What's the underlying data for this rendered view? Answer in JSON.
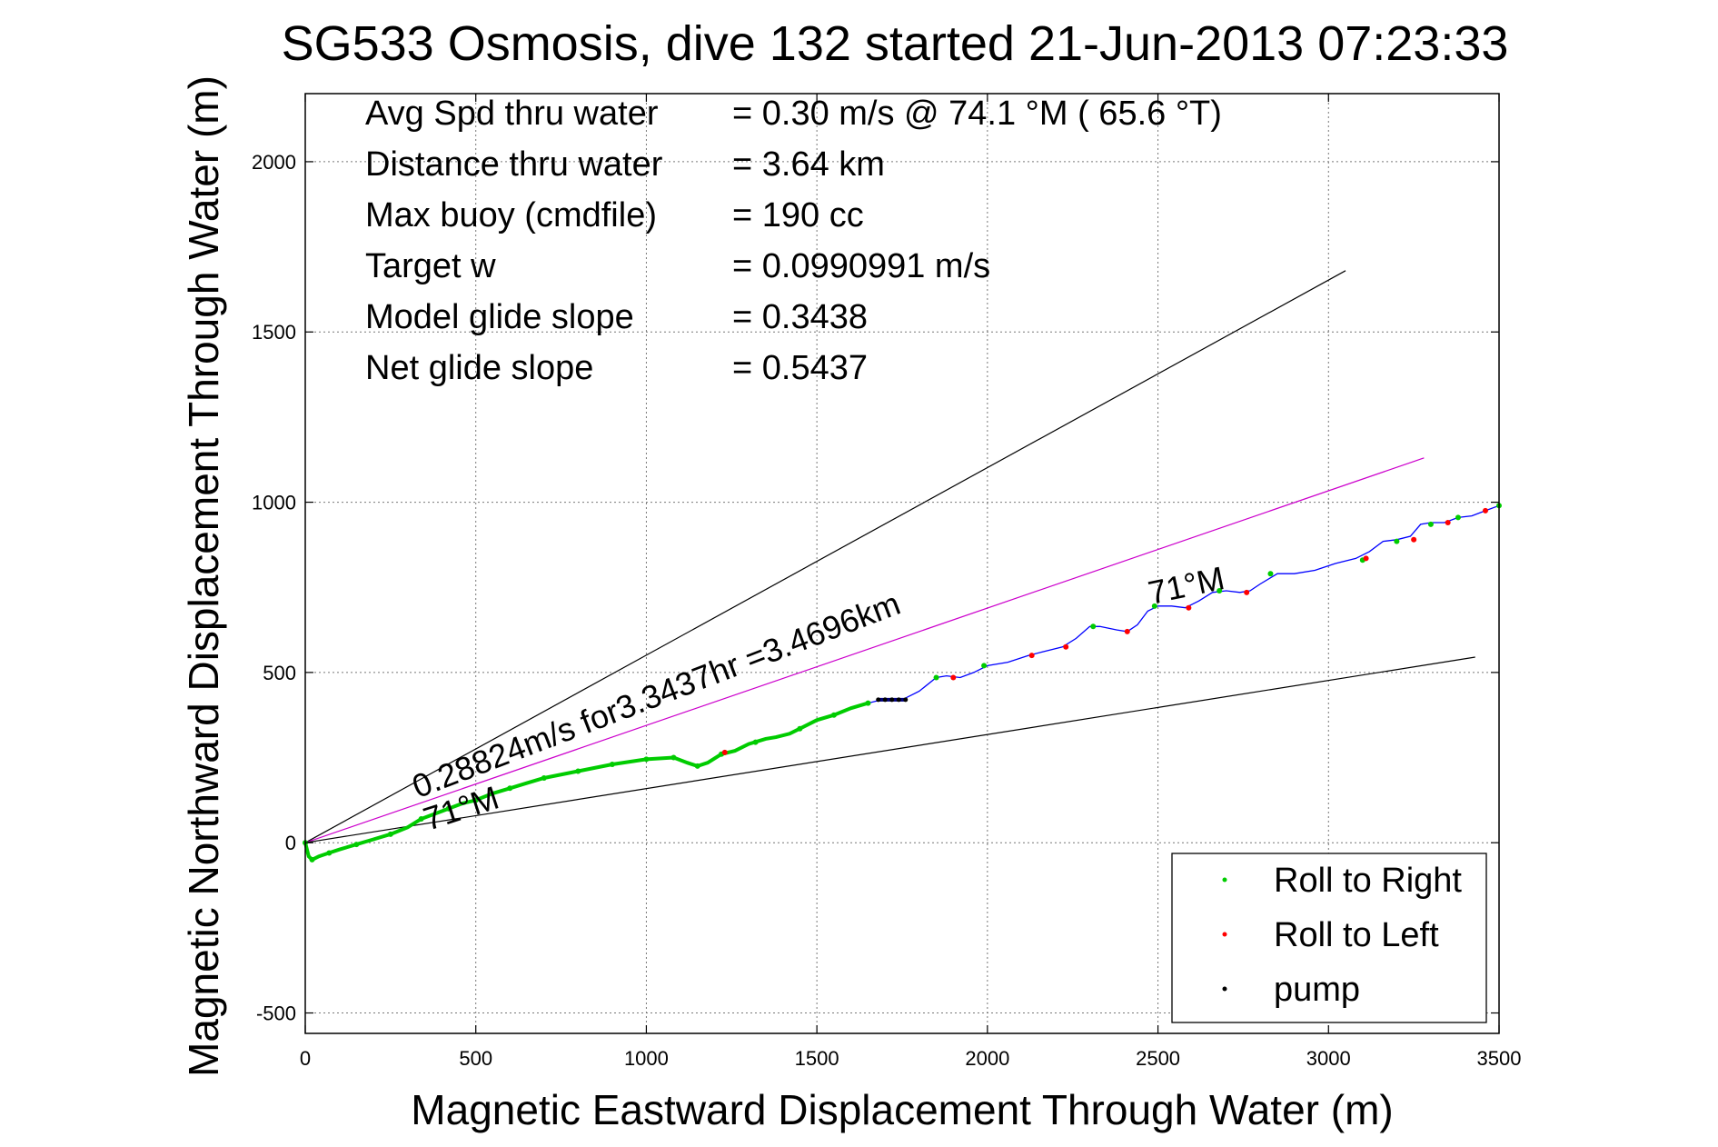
{
  "chart_data": {
    "type": "line",
    "title": "SG533 Osmosis, dive 132 started 21-Jun-2013 07:23:33",
    "xlabel": "Magnetic Eastward Displacement Through Water (m)",
    "ylabel": "Magnetic Northward Displacement Through Water (m)",
    "xlim": [
      0,
      3500
    ],
    "ylim": [
      -560,
      2200
    ],
    "x_ticks": [
      0,
      500,
      1000,
      1500,
      2000,
      2500,
      3000,
      3500
    ],
    "y_ticks": [
      -500,
      0,
      500,
      1000,
      1500,
      2000
    ],
    "grid": true,
    "legend_position": "bottom-right",
    "info_lines": [
      {
        "label": "Avg Spd thru water",
        "value": "=  0.30 m/s @  74.1 °M ( 65.6 °T)"
      },
      {
        "label": "Distance thru water",
        "value": "=  3.64 km"
      },
      {
        "label": "Max buoy (cmdfile)",
        "value": "= 190 cc"
      },
      {
        "label": "Target w",
        "value": "= 0.0990991 m/s"
      },
      {
        "label": "Model glide slope",
        "value": "= 0.3438"
      },
      {
        "label": "Net glide slope",
        "value": "= 0.5437"
      }
    ],
    "annotations": [
      {
        "text": "0.28824m/s for3.3437hr =3.4696km",
        "x": 330,
        "y": 130,
        "angle_deg": -21
      },
      {
        "text": "71°M",
        "x": 360,
        "y": 35,
        "angle_deg": -18
      },
      {
        "text": "71°M",
        "x": 2480,
        "y": 700,
        "angle_deg": -12
      }
    ],
    "reference_lines": [
      {
        "name": "",
        "color": "#000000",
        "x": [
          0,
          3050
        ],
        "y": [
          0,
          1680
        ]
      },
      {
        "name": "",
        "color": "#cc00cc",
        "x": [
          0,
          3280
        ],
        "y": [
          0,
          1130
        ]
      },
      {
        "name": "",
        "color": "#000000",
        "x": [
          0,
          3430
        ],
        "y": [
          0,
          545
        ]
      }
    ],
    "track": {
      "color": "#0000ff",
      "x": [
        0,
        10,
        20,
        40,
        70,
        100,
        150,
        200,
        250,
        300,
        340,
        380,
        420,
        460,
        500,
        550,
        600,
        650,
        700,
        800,
        900,
        1000,
        1080,
        1120,
        1150,
        1180,
        1220,
        1260,
        1300,
        1350,
        1380,
        1420,
        1450,
        1500,
        1550,
        1600,
        1650,
        1690,
        1750,
        1800,
        1850,
        1880,
        1920,
        1960,
        2000,
        2060,
        2120,
        2160,
        2220,
        2260,
        2300,
        2330,
        2380,
        2410,
        2440,
        2470,
        2500,
        2540,
        2580,
        2620,
        2660,
        2700,
        2740,
        2770,
        2800,
        2850,
        2900,
        2960,
        3020,
        3080,
        3120,
        3160,
        3200,
        3240,
        3270,
        3300,
        3340,
        3380,
        3420,
        3460,
        3500
      ],
      "y": [
        0,
        -40,
        -50,
        -40,
        -30,
        -20,
        -5,
        10,
        25,
        45,
        70,
        85,
        100,
        115,
        125,
        145,
        160,
        175,
        190,
        210,
        230,
        245,
        250,
        235,
        225,
        235,
        260,
        270,
        290,
        305,
        310,
        320,
        335,
        360,
        375,
        395,
        410,
        420,
        420,
        445,
        485,
        490,
        485,
        500,
        520,
        530,
        550,
        560,
        575,
        600,
        635,
        635,
        625,
        620,
        640,
        680,
        695,
        695,
        690,
        710,
        735,
        740,
        735,
        740,
        760,
        790,
        790,
        800,
        820,
        835,
        855,
        885,
        890,
        900,
        935,
        940,
        940,
        955,
        960,
        975,
        990
      ]
    },
    "roll_right": {
      "color": "#00cc00",
      "x": [
        0,
        20,
        70,
        150,
        250,
        340,
        420,
        500,
        600,
        700,
        800,
        900,
        1000,
        1080,
        1150,
        1220,
        1320,
        1450,
        1550,
        1650,
        1850,
        1990,
        2310,
        2490,
        2680,
        2830,
        3100,
        3200,
        3300,
        3380,
        3500
      ],
      "y": [
        0,
        -50,
        -30,
        -5,
        25,
        70,
        100,
        125,
        160,
        190,
        210,
        230,
        245,
        250,
        225,
        260,
        295,
        335,
        375,
        410,
        485,
        520,
        635,
        695,
        740,
        790,
        830,
        885,
        935,
        955,
        990
      ]
    },
    "roll_left": {
      "color": "#ff0000",
      "x": [
        1230,
        1900,
        2130,
        2230,
        2410,
        2590,
        2760,
        3110,
        3250,
        3350,
        3460
      ],
      "y": [
        265,
        485,
        550,
        575,
        620,
        690,
        735,
        835,
        890,
        940,
        975
      ]
    },
    "pump": {
      "color": "#000000",
      "x": [
        1680,
        1700,
        1720,
        1740,
        1760
      ],
      "y": [
        420,
        420,
        420,
        420,
        420
      ]
    },
    "legend": [
      {
        "label": "Roll to Right",
        "color": "#00cc00"
      },
      {
        "label": "Roll to Left",
        "color": "#ff0000"
      },
      {
        "label": "pump",
        "color": "#000000"
      }
    ]
  }
}
